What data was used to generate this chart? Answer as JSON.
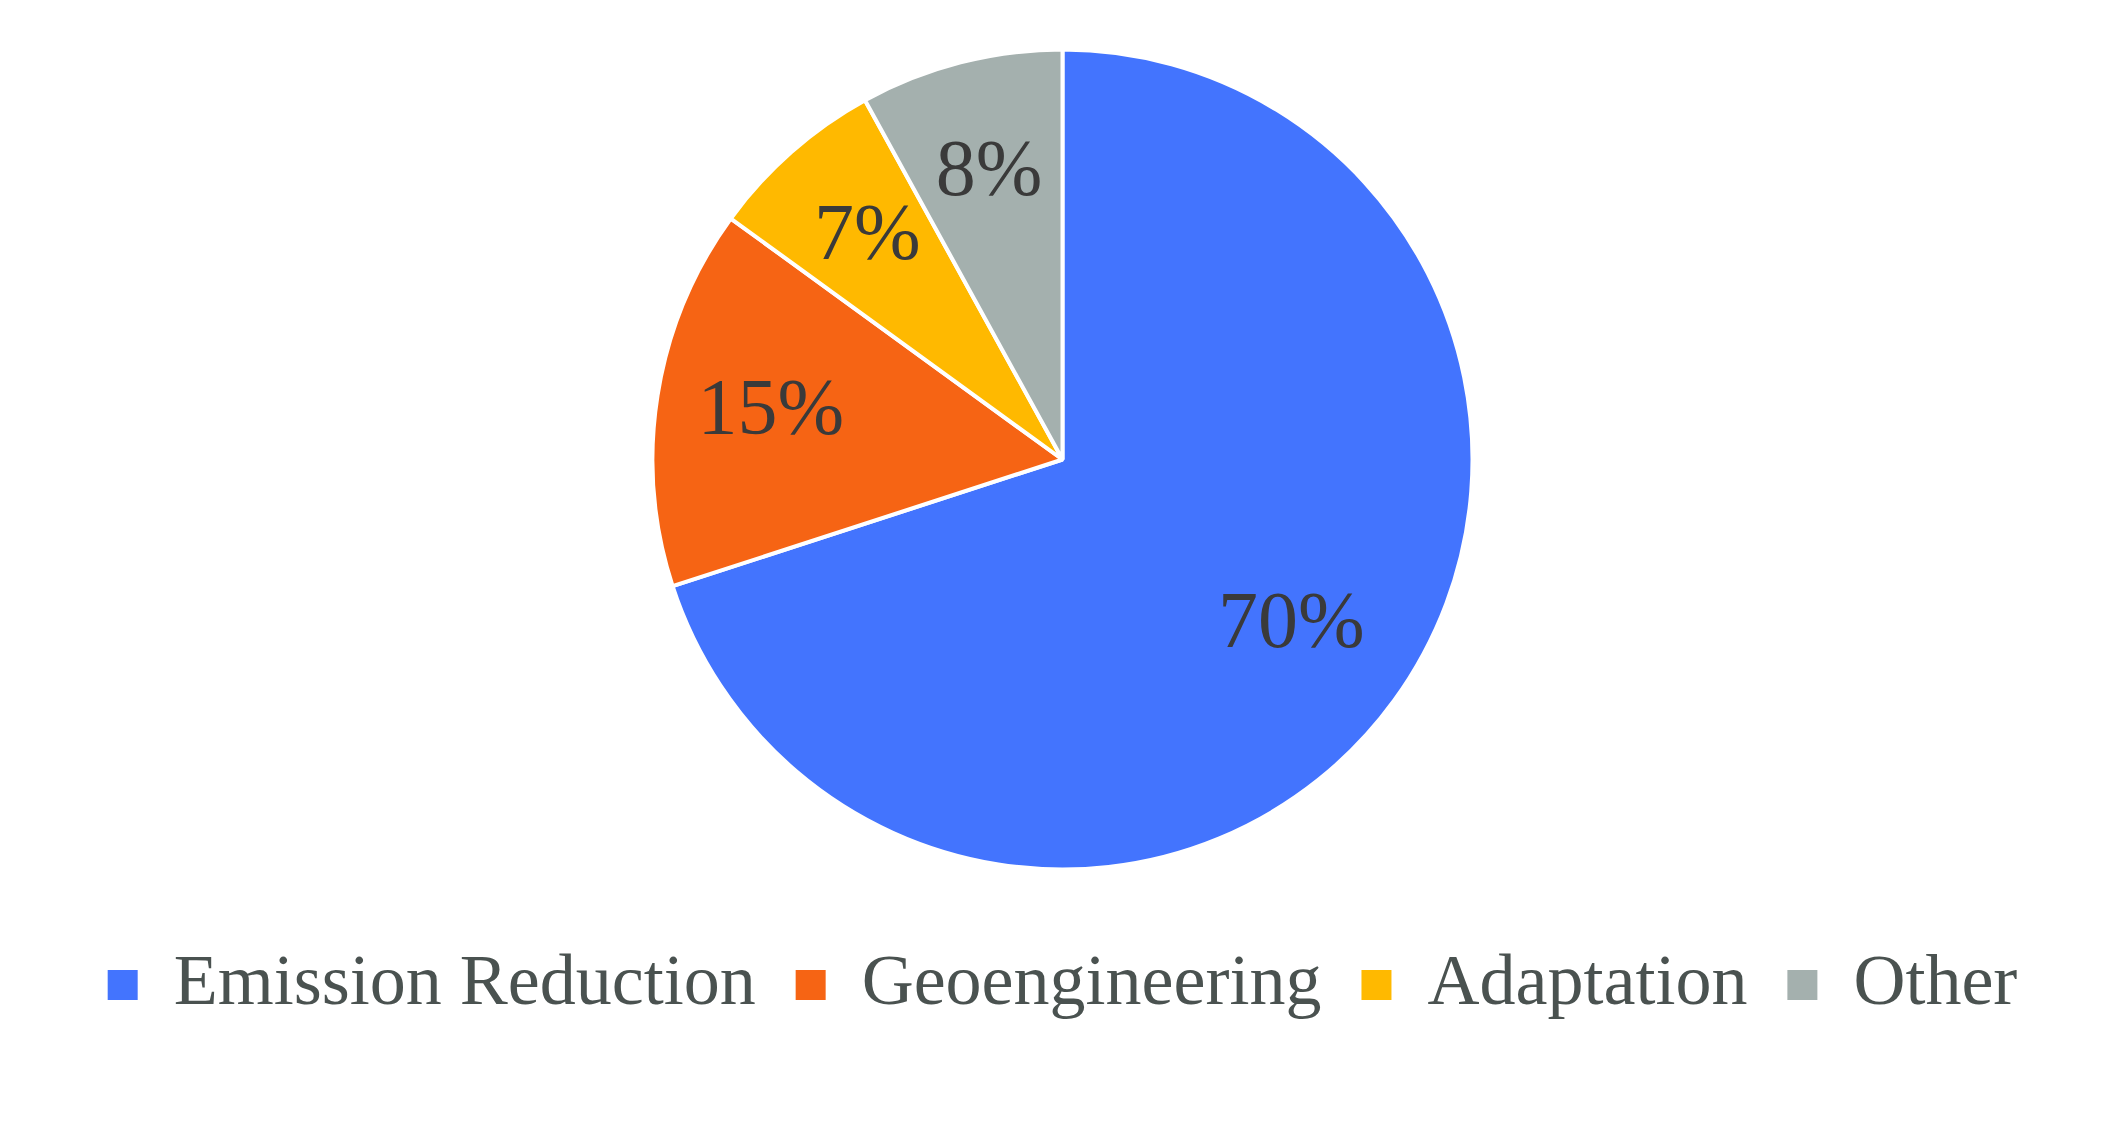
{
  "chart_data": {
    "type": "pie",
    "categories": [
      "Emission Reduction",
      "Geoengineering",
      "Adaptation",
      "Other"
    ],
    "values": [
      70,
      15,
      7,
      8
    ],
    "colors": [
      "#4374fe",
      "#f66414",
      "#ffb900",
      "#a4b0ae"
    ],
    "value_labels": [
      "70%",
      "15%",
      "7%",
      "8%"
    ],
    "legend": "bottom"
  }
}
